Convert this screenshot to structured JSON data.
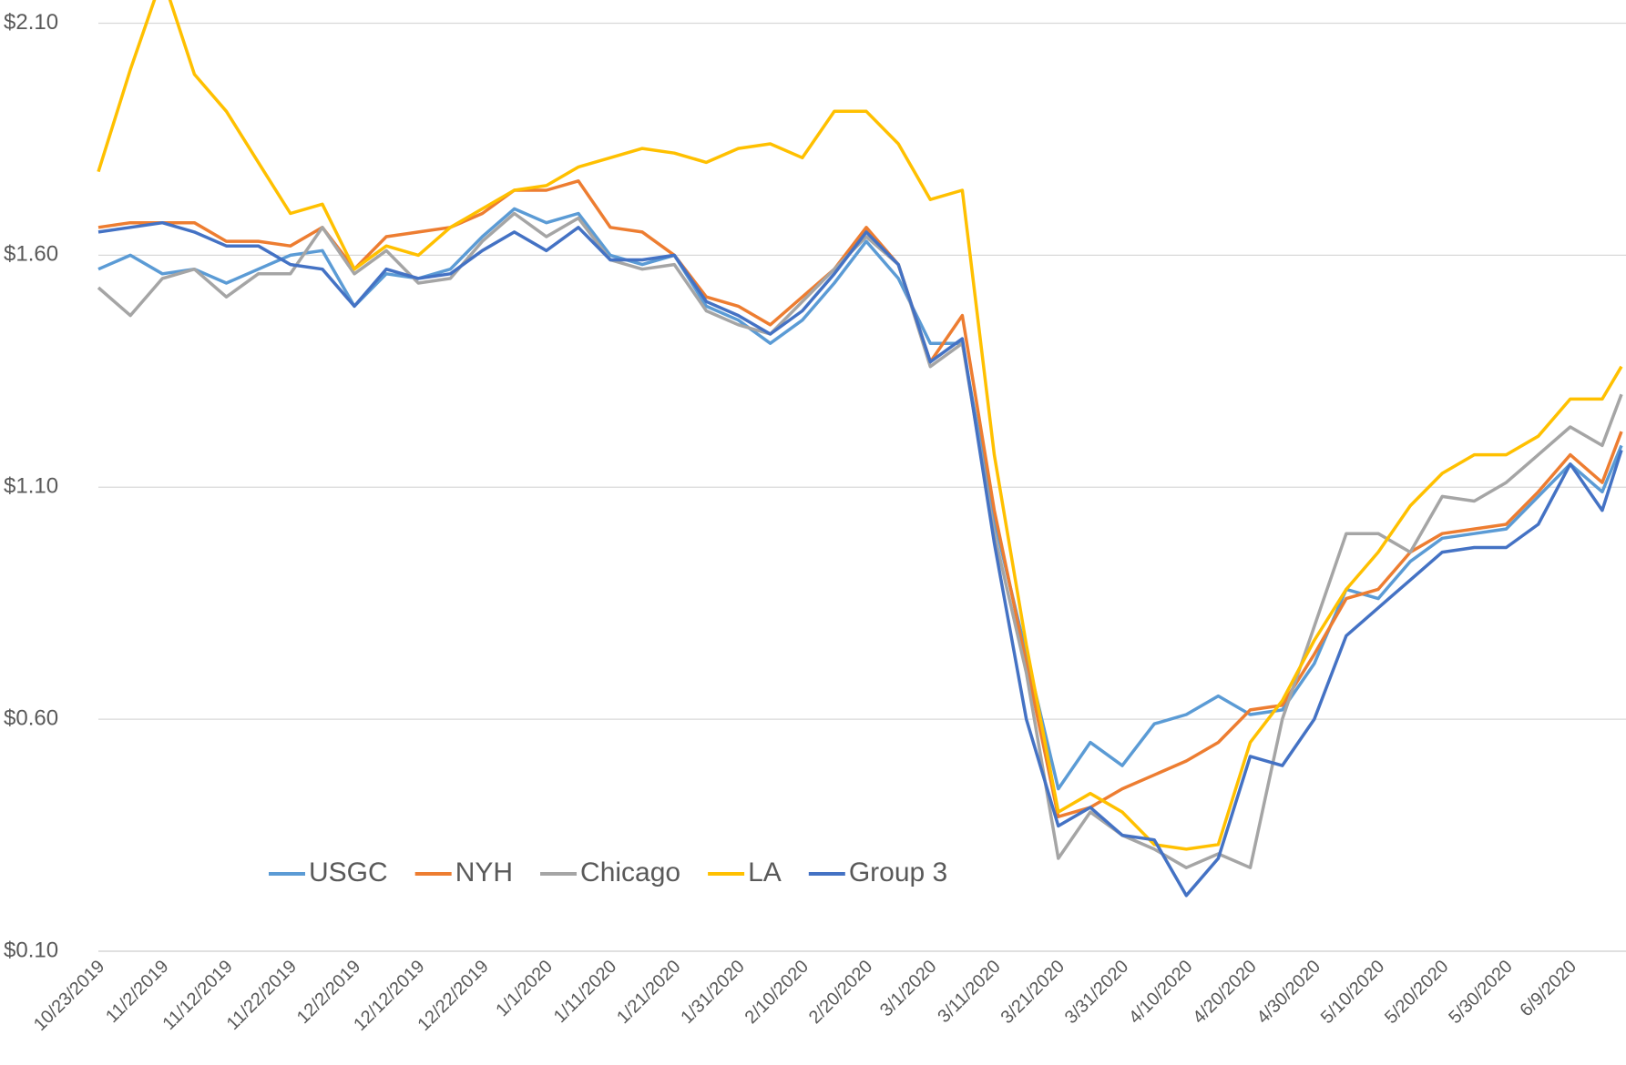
{
  "chart_data": {
    "type": "line",
    "x": [
      "10/23/2019",
      "10/28/2019",
      "11/2/2019",
      "11/7/2019",
      "11/12/2019",
      "11/17/2019",
      "11/22/2019",
      "11/27/2019",
      "12/2/2019",
      "12/7/2019",
      "12/12/2019",
      "12/17/2019",
      "12/22/2019",
      "12/27/2019",
      "1/1/2020",
      "1/6/2020",
      "1/11/2020",
      "1/16/2020",
      "1/21/2020",
      "1/26/2020",
      "1/31/2020",
      "2/5/2020",
      "2/10/2020",
      "2/15/2020",
      "2/20/2020",
      "2/25/2020",
      "3/1/2020",
      "3/6/2020",
      "3/11/2020",
      "3/16/2020",
      "3/21/2020",
      "3/26/2020",
      "3/31/2020",
      "4/5/2020",
      "4/10/2020",
      "4/15/2020",
      "4/20/2020",
      "4/25/2020",
      "4/30/2020",
      "5/5/2020",
      "5/10/2020",
      "5/15/2020",
      "5/20/2020",
      "5/25/2020",
      "5/30/2020",
      "6/4/2020",
      "6/9/2020",
      "6/14/2020",
      "6/17/2020"
    ],
    "series": [
      {
        "name": "USGC",
        "color": "#5b9bd5",
        "values": [
          1.57,
          1.6,
          1.56,
          1.57,
          1.54,
          1.57,
          1.6,
          1.61,
          1.49,
          1.56,
          1.55,
          1.57,
          1.64,
          1.7,
          1.67,
          1.69,
          1.6,
          1.58,
          1.6,
          1.49,
          1.46,
          1.41,
          1.46,
          1.54,
          1.63,
          1.55,
          1.41,
          1.41,
          1.03,
          0.74,
          0.45,
          0.55,
          0.5,
          0.59,
          0.61,
          0.65,
          0.61,
          0.62,
          0.72,
          0.88,
          0.86,
          0.94,
          0.99,
          1.0,
          1.01,
          1.08,
          1.15,
          1.09,
          1.19
        ]
      },
      {
        "name": "NYH",
        "color": "#ed7d31",
        "values": [
          1.66,
          1.67,
          1.67,
          1.67,
          1.63,
          1.63,
          1.62,
          1.66,
          1.57,
          1.64,
          1.65,
          1.66,
          1.69,
          1.74,
          1.74,
          1.76,
          1.66,
          1.65,
          1.6,
          1.51,
          1.49,
          1.45,
          1.51,
          1.57,
          1.66,
          1.58,
          1.37,
          1.47,
          1.05,
          0.72,
          0.39,
          0.41,
          0.45,
          0.48,
          0.51,
          0.55,
          0.62,
          0.63,
          0.74,
          0.86,
          0.88,
          0.96,
          1.0,
          1.01,
          1.02,
          1.09,
          1.17,
          1.11,
          1.22
        ]
      },
      {
        "name": "Chicago",
        "color": "#a5a5a5",
        "values": [
          1.53,
          1.47,
          1.55,
          1.57,
          1.51,
          1.56,
          1.56,
          1.66,
          1.56,
          1.61,
          1.54,
          1.55,
          1.63,
          1.69,
          1.64,
          1.68,
          1.59,
          1.57,
          1.58,
          1.48,
          1.45,
          1.43,
          1.5,
          1.57,
          1.64,
          1.58,
          1.36,
          1.41,
          1.0,
          0.7,
          0.3,
          0.4,
          0.35,
          0.32,
          0.28,
          0.31,
          0.28,
          0.6,
          0.8,
          1.0,
          1.0,
          0.96,
          1.08,
          1.07,
          1.11,
          1.17,
          1.23,
          1.19,
          1.3
        ]
      },
      {
        "name": "LA",
        "color": "#ffc000",
        "values": [
          1.78,
          2.0,
          2.2,
          1.99,
          1.91,
          1.8,
          1.69,
          1.71,
          1.57,
          1.62,
          1.6,
          1.66,
          1.7,
          1.74,
          1.75,
          1.79,
          1.81,
          1.83,
          1.82,
          1.8,
          1.83,
          1.84,
          1.81,
          1.91,
          1.91,
          1.84,
          1.72,
          1.74,
          1.17,
          0.76,
          0.4,
          0.44,
          0.4,
          0.33,
          0.32,
          0.33,
          0.55,
          0.64,
          0.77,
          0.88,
          0.96,
          1.06,
          1.13,
          1.17,
          1.17,
          1.21,
          1.29,
          1.29,
          1.36
        ]
      },
      {
        "name": "Group 3",
        "color": "#4472c4",
        "values": [
          1.65,
          1.66,
          1.67,
          1.65,
          1.62,
          1.62,
          1.58,
          1.57,
          1.49,
          1.57,
          1.55,
          1.56,
          1.61,
          1.65,
          1.61,
          1.66,
          1.59,
          1.59,
          1.6,
          1.5,
          1.47,
          1.43,
          1.48,
          1.56,
          1.65,
          1.58,
          1.37,
          1.42,
          0.98,
          0.6,
          0.37,
          0.41,
          0.35,
          0.34,
          0.22,
          0.3,
          0.52,
          0.5,
          0.6,
          0.78,
          0.84,
          0.9,
          0.96,
          0.97,
          0.97,
          1.02,
          1.15,
          1.05,
          1.18
        ]
      }
    ],
    "xlim": [
      "10/23/2019",
      "6/17/2020"
    ],
    "xticks": [
      "10/23/2019",
      "11/2/2019",
      "11/12/2019",
      "11/22/2019",
      "12/2/2019",
      "12/12/2019",
      "12/22/2019",
      "1/1/2020",
      "1/11/2020",
      "1/21/2020",
      "1/31/2020",
      "2/10/2020",
      "2/20/2020",
      "3/1/2020",
      "3/11/2020",
      "3/21/2020",
      "3/31/2020",
      "4/10/2020",
      "4/20/2020",
      "4/30/2020",
      "5/10/2020",
      "5/20/2020",
      "5/30/2020",
      "6/9/2020"
    ],
    "ylim": [
      0.1,
      2.15
    ],
    "yticks": [
      {
        "value": 0.1,
        "label": "$0.10"
      },
      {
        "value": 0.6,
        "label": "$0.60"
      },
      {
        "value": 1.1,
        "label": "$1.10"
      },
      {
        "value": 1.6,
        "label": "$1.60"
      },
      {
        "value": 2.1,
        "label": "$2.10"
      }
    ],
    "grid": true,
    "legend": "bottom"
  }
}
